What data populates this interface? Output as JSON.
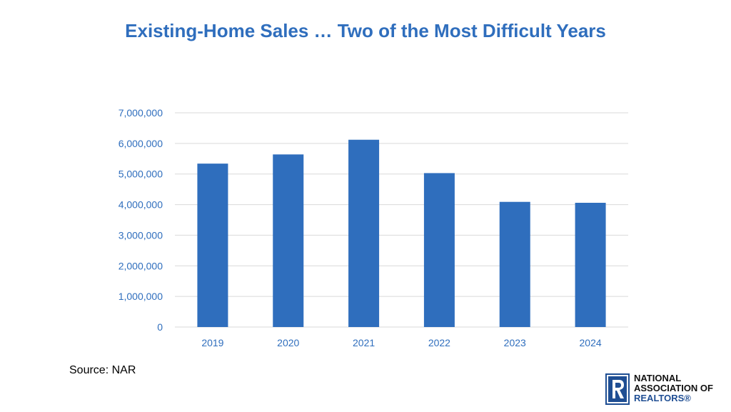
{
  "chart_data": {
    "type": "bar",
    "title": "Existing-Home Sales … Two of the Most Difficult Years",
    "categories": [
      "2019",
      "2020",
      "2021",
      "2022",
      "2023",
      "2024"
    ],
    "values": [
      5340000,
      5640000,
      6120000,
      5030000,
      4090000,
      4060000
    ],
    "ylim": [
      0,
      7000000
    ],
    "yticks": [
      0,
      1000000,
      2000000,
      3000000,
      4000000,
      5000000,
      6000000,
      7000000
    ],
    "ytick_labels": [
      "0",
      "1,000,000",
      "2,000,000",
      "3,000,000",
      "4,000,000",
      "5,000,000",
      "6,000,000",
      "7,000,000"
    ],
    "xlabel": "",
    "ylabel": "",
    "grid": true,
    "legend": "none",
    "colors": {
      "bar": "#2f6ebd",
      "text": "#2f6ebd",
      "grid": "#d9d9d9"
    }
  },
  "source": "Source: NAR",
  "logo": {
    "line1": "NATIONAL",
    "line2": "ASSOCIATION OF",
    "line3": "REALTORS®",
    "icon": "realtor-r-logo-icon"
  }
}
